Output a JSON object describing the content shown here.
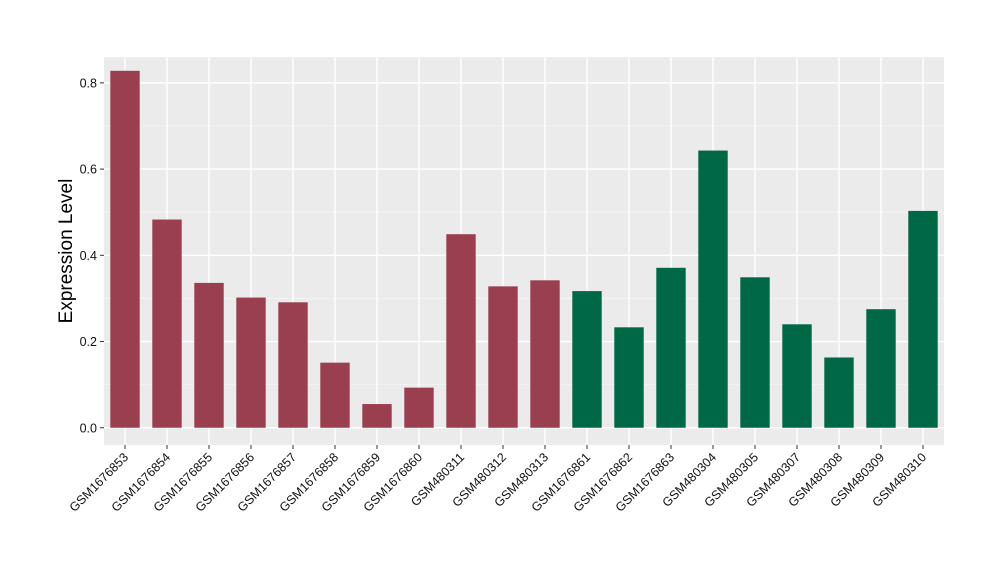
{
  "chart_data": {
    "type": "bar",
    "title": "",
    "xlabel": "",
    "ylabel": "Expression Level",
    "ylim": [
      -0.04,
      0.86
    ],
    "yticks": [
      0.0,
      0.2,
      0.4,
      0.6,
      0.8
    ],
    "ytick_labels": [
      "0.0",
      "0.2",
      "0.4",
      "0.6",
      "0.8"
    ],
    "grid": true,
    "legend": "none",
    "background": "#ebebeb",
    "categories": [
      "GSM1676853",
      "GSM1676854",
      "GSM1676855",
      "GSM1676856",
      "GSM1676857",
      "GSM1676858",
      "GSM1676859",
      "GSM1676860",
      "GSM480311",
      "GSM480312",
      "GSM480313",
      "GSM1676861",
      "GSM1676862",
      "GSM1676863",
      "GSM480304",
      "GSM480305",
      "GSM480307",
      "GSM480308",
      "GSM480309",
      "GSM480310"
    ],
    "values": [
      0.828,
      0.483,
      0.336,
      0.302,
      0.291,
      0.151,
      0.055,
      0.093,
      0.449,
      0.328,
      0.342,
      0.317,
      0.233,
      0.371,
      0.643,
      0.349,
      0.24,
      0.163,
      0.275,
      0.503
    ],
    "bar_colors": [
      "#9a3f4f",
      "#9a3f4f",
      "#9a3f4f",
      "#9a3f4f",
      "#9a3f4f",
      "#9a3f4f",
      "#9a3f4f",
      "#9a3f4f",
      "#9a3f4f",
      "#9a3f4f",
      "#9a3f4f",
      "#006846",
      "#006846",
      "#006846",
      "#006846",
      "#006846",
      "#006846",
      "#006846",
      "#006846",
      "#006846"
    ]
  }
}
